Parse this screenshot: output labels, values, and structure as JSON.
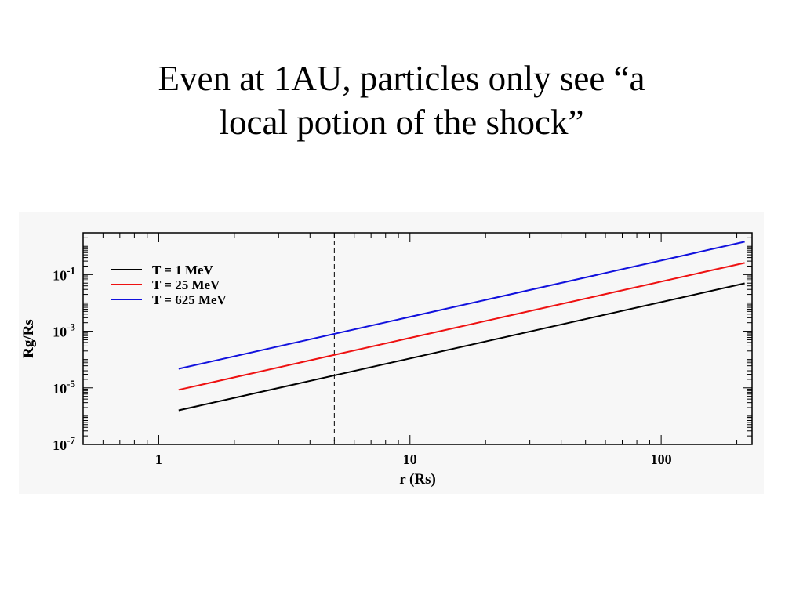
{
  "slide": {
    "title_lines": [
      "Even at 1AU, particles only see “a",
      "local potion of the shock”"
    ]
  },
  "chart_data": {
    "type": "line",
    "title": "",
    "xlabel": "r (Rs)",
    "ylabel": "Rg/Rs",
    "xscale": "log",
    "yscale": "log",
    "xlim": [
      0.5,
      230
    ],
    "ylim": [
      1e-07,
      3
    ],
    "x_ticks": [
      1,
      10,
      100
    ],
    "x_tick_labels": [
      "1",
      "10",
      "100"
    ],
    "y_ticks": [
      1e-07,
      1e-05,
      0.001,
      0.1
    ],
    "y_tick_labels": [
      {
        "base": "10",
        "exp": "-7"
      },
      {
        "base": "10",
        "exp": "-5"
      },
      {
        "base": "10",
        "exp": "-3"
      },
      {
        "base": "10",
        "exp": "-1"
      }
    ],
    "grid": false,
    "legend_position": "top-left",
    "vline": {
      "x": 5,
      "style": "dashed",
      "color": "#000000"
    },
    "series": [
      {
        "name": "T = 1 MeV",
        "color": "#000000",
        "x": [
          1.2,
          215
        ],
        "y": [
          1.6e-06,
          0.049
        ]
      },
      {
        "name": "T = 25 MeV",
        "color": "#ee1111",
        "x": [
          1.2,
          215
        ],
        "y": [
          8.5e-06,
          0.26
        ]
      },
      {
        "name": "T = 625 MeV",
        "color": "#1111dd",
        "x": [
          1.2,
          215
        ],
        "y": [
          4.7e-05,
          1.45
        ]
      }
    ]
  }
}
